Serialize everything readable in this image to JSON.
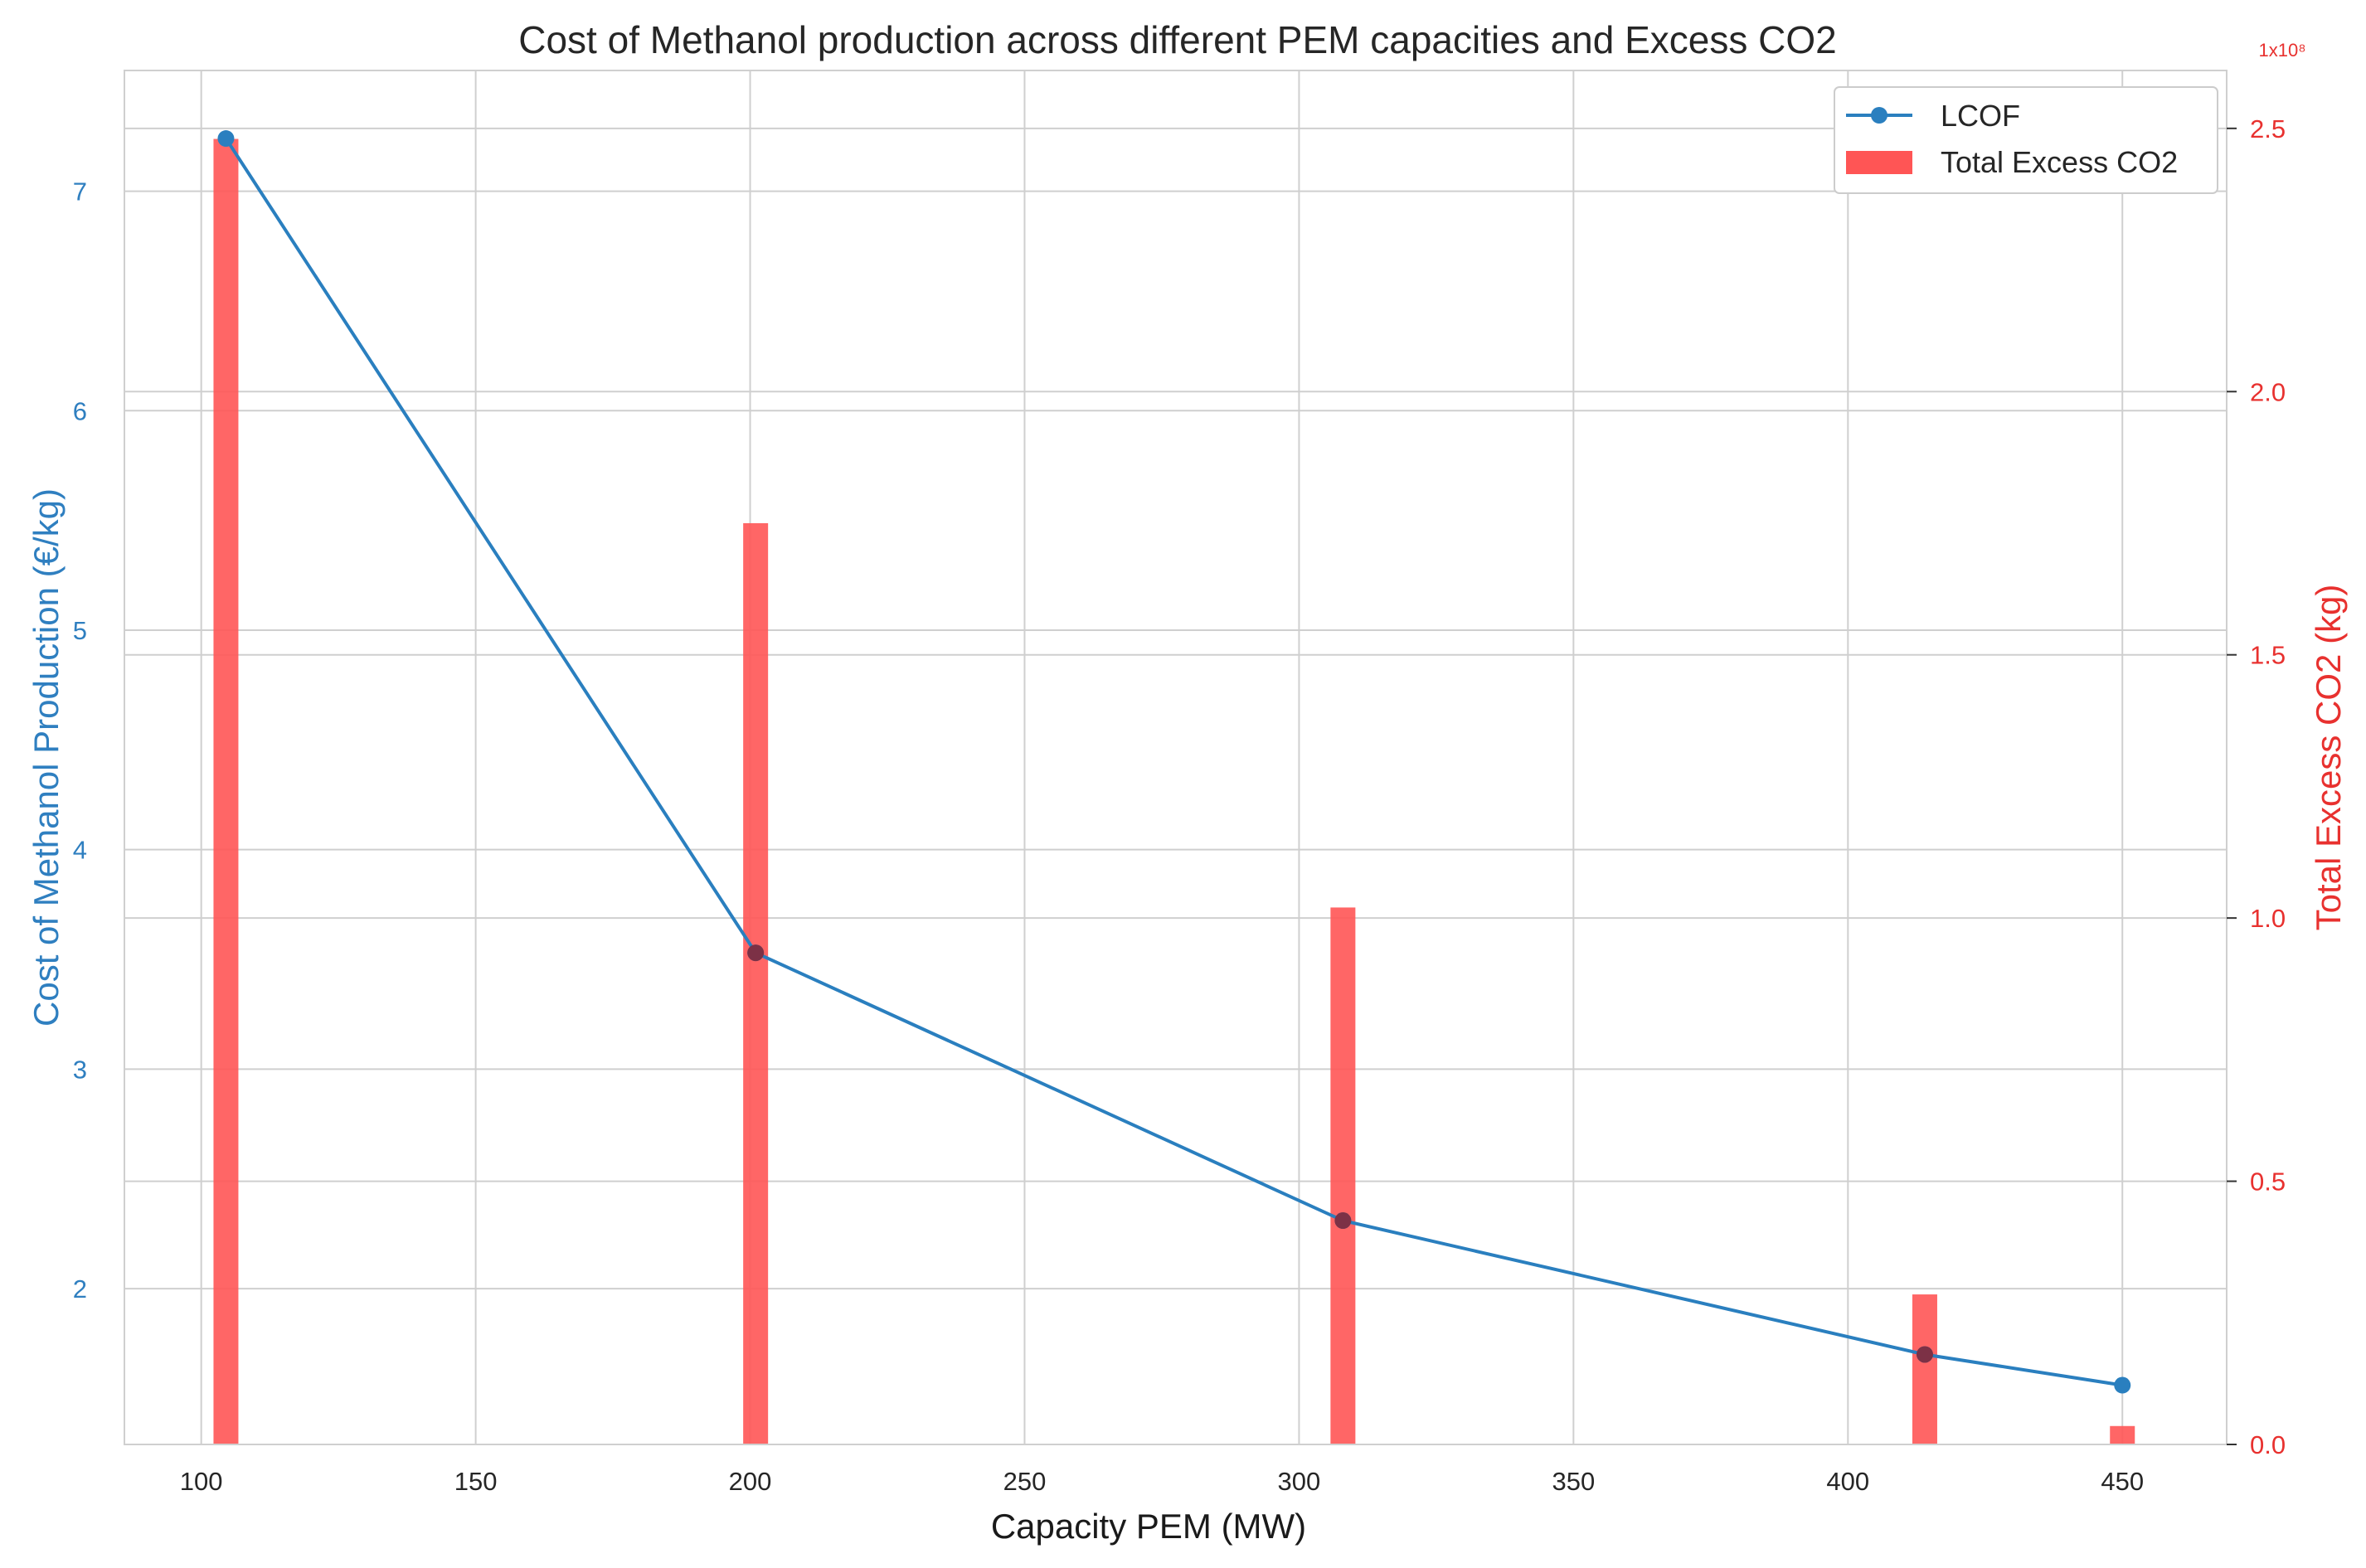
{
  "chart_data": {
    "type": "bar+line",
    "title": "Cost of Methanol production across different PEM capacities and Excess CO2",
    "xlabel": "Capacity PEM (MW)",
    "ylabel_left": "Cost of Methanol Production (€/kg)",
    "ylabel_right": "Total Excess CO2 (kg)",
    "x_ticks": [
      "100",
      "150",
      "200",
      "250",
      "300",
      "350",
      "400",
      "450"
    ],
    "x_tick_values": [
      100,
      150,
      200,
      250,
      300,
      350,
      400,
      450
    ],
    "xlim": [
      86,
      469
    ],
    "y_left_ticks": [
      "2",
      "3",
      "4",
      "5",
      "6",
      "7"
    ],
    "y_left_tick_values": [
      2,
      3,
      4,
      5,
      6,
      7
    ],
    "ylim_left": [
      1.29,
      7.55
    ],
    "y_right_ticks": [
      "0.0",
      "0.5",
      "1.0",
      "1.5",
      "2.0",
      "2.5"
    ],
    "y_right_tick_values": [
      0,
      0.5,
      1.0,
      1.5,
      2.0,
      2.5
    ],
    "ylim_right": [
      0,
      2.61
    ],
    "y_right_multiplier": "1x10⁸",
    "grid": true,
    "legend_position": "top-right",
    "colors": {
      "line": "#2a7fbf",
      "bar": "#ff5555",
      "left_axis": "#2f7fc0",
      "right_axis": "#e8312f",
      "grid": "#cfcfcf"
    },
    "series": [
      {
        "name": "LCOF",
        "kind": "line",
        "axis": "left",
        "x": [
          104.5,
          201,
          308,
          414,
          450
        ],
        "values": [
          7.24,
          3.53,
          2.31,
          1.7,
          1.56
        ]
      },
      {
        "name": "Total Excess CO2",
        "kind": "bar",
        "axis": "right",
        "x": [
          104.5,
          201,
          308,
          414,
          450
        ],
        "values": [
          2.48,
          1.75,
          1.02,
          0.285,
          0.035
        ]
      }
    ]
  }
}
